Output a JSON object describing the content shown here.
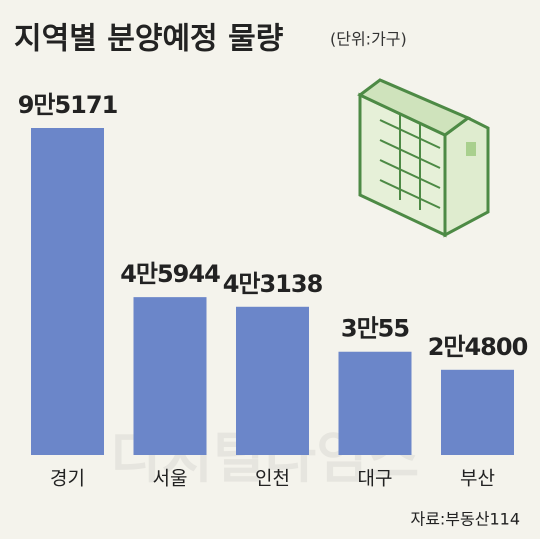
{
  "chart_data": {
    "type": "bar",
    "title": "지역별 분양예정 물량",
    "subtitle": "(단위:가구)",
    "categories": [
      "경기",
      "서울",
      "인천",
      "대구",
      "부산"
    ],
    "values": [
      95171,
      45944,
      43138,
      30055,
      24800
    ],
    "value_labels": [
      "9만5171",
      "4만5944",
      "4만3138",
      "3만55",
      "2만4800"
    ],
    "color": "#6b86c9",
    "source": "자료:부동산114",
    "watermark": "디지털타임스"
  }
}
